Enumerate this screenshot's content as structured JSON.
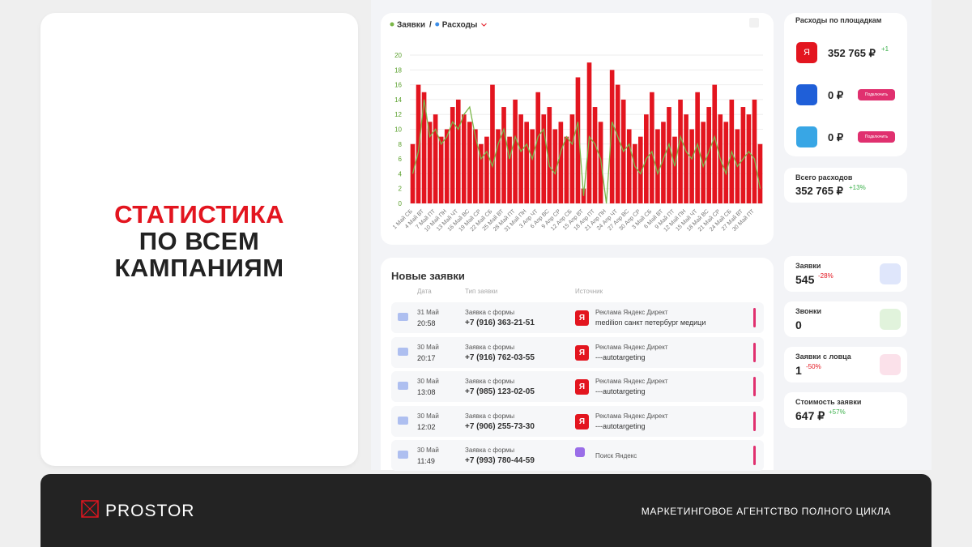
{
  "slide": {
    "headline": [
      "СТАТИСТИКА",
      "ПО ВСЕМ",
      "КАМПАНИЯМ"
    ],
    "logo": "PROSTOR",
    "tagline": "МАРКЕТИНГОВОЕ АГЕНТСТВО ПОЛНОГО ЦИКЛА"
  },
  "chart_data": {
    "type": "bar",
    "legend_separator": "/",
    "categories": [
      "1 Май СБ",
      null,
      "4 Май ВТ",
      null,
      "7 Май ПТ",
      null,
      "10 Май ПН",
      null,
      "13 Май ЧТ",
      null,
      "16 Май ВС",
      null,
      "19 Май СР",
      null,
      "22 Май СБ",
      null,
      "25 Май ВТ",
      null,
      "28 Май ПТ",
      null,
      "31 Май ПН",
      null,
      "3 Апр ЧТ",
      null,
      "6 Апр ВС",
      null,
      "9 Апр СР",
      null,
      "12 Апр СБ",
      null,
      "15 Апр ВТ",
      null,
      "18 Апр ПТ",
      null,
      "21 Апр ПН",
      null,
      "24 Апр ЧТ",
      null,
      "27 Апр ВС",
      null,
      "30 Апр СР",
      null,
      "3 Май СБ",
      null,
      "6 Май ВТ",
      null,
      "9 Май ПТ",
      null,
      "12 Май ПН",
      null,
      "15 Май ЧТ",
      null,
      "18 Май ВС",
      null,
      "21 Май СР",
      null,
      "24 Май СБ",
      null,
      "27 Май ВТ",
      null,
      "30 Май ПТ",
      null
    ],
    "series": [
      {
        "name": "Заявки",
        "type": "line",
        "color": "#7ab648",
        "marker_color": "#7ab648",
        "values": [
          4,
          7,
          14,
          9,
          10,
          8,
          9,
          11,
          10,
          12,
          13,
          9,
          6,
          7,
          5,
          8,
          10,
          6,
          9,
          7,
          8,
          6,
          9,
          10,
          5,
          4,
          7,
          9,
          8,
          11,
          1,
          9,
          8,
          6,
          0,
          11,
          9,
          7,
          8,
          5,
          4,
          6,
          7,
          4,
          6,
          8,
          5,
          9,
          7,
          6,
          8,
          5,
          7,
          9,
          6,
          4,
          7,
          5,
          6,
          7,
          6,
          2
        ]
      },
      {
        "name": "Расходы",
        "type": "bar",
        "color": "#e3151f",
        "marker_color": "#3d8ee8",
        "values": [
          8,
          16,
          15,
          11,
          12,
          9,
          10,
          13,
          14,
          12,
          11,
          10,
          8,
          9,
          16,
          10,
          13,
          9,
          14,
          12,
          11,
          10,
          15,
          12,
          13,
          10,
          11,
          9,
          12,
          17,
          2,
          19,
          13,
          11,
          0,
          18,
          16,
          14,
          10,
          8,
          9,
          12,
          15,
          10,
          11,
          13,
          9,
          14,
          12,
          10,
          15,
          11,
          13,
          16,
          12,
          11,
          14,
          10,
          13,
          12,
          14,
          8
        ]
      }
    ],
    "ylim": [
      0,
      20
    ],
    "yticks": [
      0,
      2,
      4,
      6,
      8,
      10,
      12,
      14,
      16,
      18,
      20
    ],
    "grid": true
  },
  "leads": {
    "title": "Новые заявки",
    "headers": [
      "Дата",
      "Тип заявки",
      "Источник"
    ],
    "rows": [
      {
        "date": "31 Май",
        "time": "20:58",
        "type": "Заявка с формы",
        "phone": "+7 (916) 363-21-51",
        "icon": "Я",
        "source": "Реклама Яндекс Директ",
        "campaign": "medilion санкт петербург медици"
      },
      {
        "date": "30 Май",
        "time": "20:17",
        "type": "Заявка с формы",
        "phone": "+7 (916) 762-03-55",
        "icon": "Я",
        "source": "Реклама Яндекс Директ",
        "campaign": "---autotargeting"
      },
      {
        "date": "30 Май",
        "time": "13:08",
        "type": "Заявка с формы",
        "phone": "+7 (985) 123-02-05",
        "icon": "Я",
        "source": "Реклама Яндекс Директ",
        "campaign": "---autotargeting"
      },
      {
        "date": "30 Май",
        "time": "12:02",
        "type": "Заявка с формы",
        "phone": "+7 (906) 255-73-30",
        "icon": "Я",
        "source": "Реклама Яндекс Директ",
        "campaign": "---autotargeting"
      },
      {
        "date": "30 Май",
        "time": "11:49",
        "type": "Заявка с формы",
        "phone": "+7 (993) 780-44-59",
        "source": "Поиск Яндекс"
      }
    ]
  },
  "platforms": {
    "title": "Расходы по площадкам",
    "rows": [
      {
        "icon": "Я",
        "amount": "352 765 ₽",
        "change": "+1"
      },
      {
        "amount": "0 ₽",
        "button": "Подключить"
      },
      {
        "amount": "0 ₽",
        "button": "Подключить"
      }
    ],
    "total": {
      "label": "Всего расходов",
      "value": "352 765 ₽",
      "change": "+13%"
    }
  },
  "kpis": [
    {
      "label": "Заявки",
      "value": "545",
      "change": "-28%"
    },
    {
      "label": "Звонки",
      "value": "0"
    },
    {
      "label": "Заявки с ловца",
      "value": "1",
      "change": "-50%"
    },
    {
      "label": "Стоимость заявки",
      "value": "647 ₽",
      "change": "+57%"
    }
  ]
}
